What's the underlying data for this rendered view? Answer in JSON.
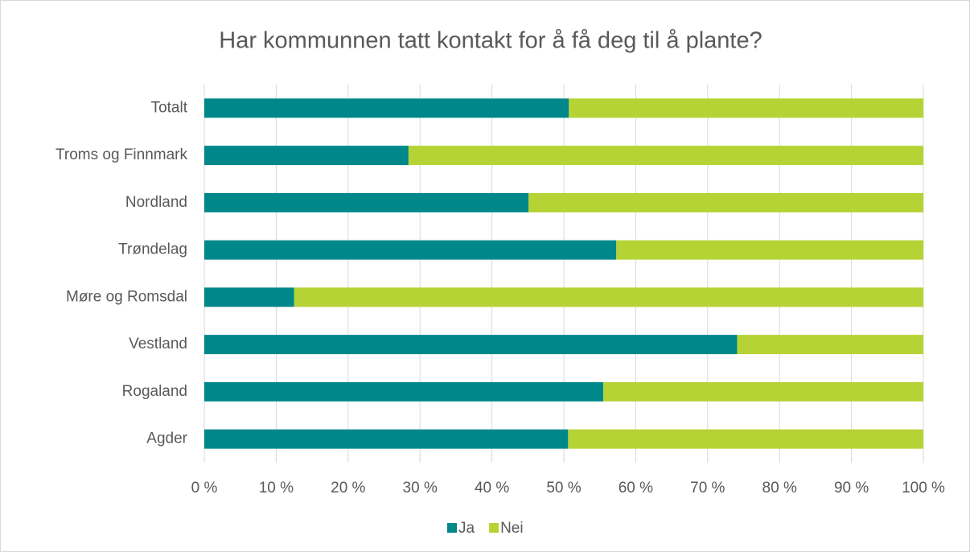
{
  "chart_data": {
    "type": "stacked-bar-horizontal",
    "title": "Har kommunnen tatt kontakt for å få deg til å plante?",
    "categories": [
      "Totalt",
      "Troms og Finnmark",
      "Nordland",
      "Trøndelag",
      "Møre og Romsdal",
      "Vestland",
      "Rogaland",
      "Agder"
    ],
    "series": [
      {
        "name": "Ja",
        "color": "#00878a",
        "values": [
          50.7,
          28.4,
          45.1,
          57.3,
          12.5,
          74.1,
          55.5,
          50.6
        ]
      },
      {
        "name": "Nei",
        "color": "#b5d334",
        "values": [
          49.3,
          71.6,
          54.9,
          42.7,
          87.5,
          25.9,
          44.5,
          49.4
        ]
      }
    ],
    "xlim": [
      0,
      100
    ],
    "xticks": [
      {
        "value": 0,
        "label": "0 %"
      },
      {
        "value": 10,
        "label": "10 %"
      },
      {
        "value": 20,
        "label": "20 %"
      },
      {
        "value": 30,
        "label": "30 %"
      },
      {
        "value": 40,
        "label": "40 %"
      },
      {
        "value": 50,
        "label": "50 %"
      },
      {
        "value": 60,
        "label": "60 %"
      },
      {
        "value": 70,
        "label": "70 %"
      },
      {
        "value": 80,
        "label": "80 %"
      },
      {
        "value": 90,
        "label": "90 %"
      },
      {
        "value": 100,
        "label": "100 %"
      }
    ],
    "grid": true,
    "legend": "bottom"
  }
}
